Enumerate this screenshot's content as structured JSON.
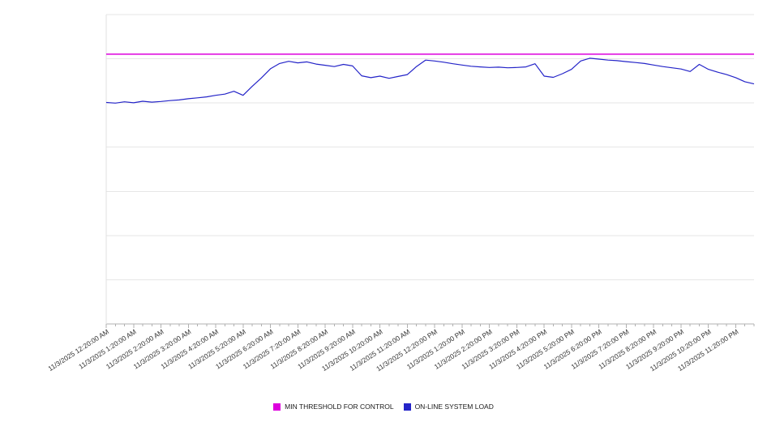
{
  "chart_data": {
    "type": "line",
    "points_per_hour": 3,
    "x_labels": [
      "11/3/2025 12:20:00 AM",
      "11/3/2025 1:20:00 AM",
      "11/3/2025 2:20:00 AM",
      "11/3/2025 3:20:00 AM",
      "11/3/2025 4:20:00 AM",
      "11/3/2025 5:20:00 AM",
      "11/3/2025 6:20:00 AM",
      "11/3/2025 7:20:00 AM",
      "11/3/2025 8:20:00 AM",
      "11/3/2025 9:20:00 AM",
      "11/3/2025 10:20:00 AM",
      "11/3/2025 11:20:00 AM",
      "11/3/2025 12:20:00 PM",
      "11/3/2025 1:20:00 PM",
      "11/3/2025 2:20:00 PM",
      "11/3/2025 3:20:00 PM",
      "11/3/2025 4:20:00 PM",
      "11/3/2025 5:20:00 PM",
      "11/3/2025 6:20:00 PM",
      "11/3/2025 7:20:00 PM",
      "11/3/2025 8:20:00 PM",
      "11/3/2025 9:20:00 PM",
      "11/3/2025 10:20:00 PM",
      "11/3/2025 11:20:00 PM"
    ],
    "ylim": [
      0,
      100
    ],
    "grid": "horizontal",
    "legend_position": "bottom",
    "series": [
      {
        "name": "MIN THRESHOLD FOR CONTROL",
        "color": "#dd00dd",
        "constant": 87.2
      },
      {
        "name": "ON-LINE SYSTEM LOAD",
        "color": "#2424c8",
        "values": [
          71.6,
          71.4,
          71.8,
          71.5,
          72.0,
          71.7,
          71.9,
          72.2,
          72.4,
          72.8,
          73.1,
          73.4,
          73.9,
          74.3,
          75.2,
          73.9,
          76.8,
          79.5,
          82.5,
          84.2,
          84.9,
          84.4,
          84.7,
          84.0,
          83.6,
          83.2,
          83.9,
          83.4,
          80.2,
          79.6,
          80.1,
          79.4,
          80.0,
          80.6,
          83.2,
          85.3,
          85.0,
          84.6,
          84.1,
          83.7,
          83.3,
          83.1,
          82.9,
          83.0,
          82.8,
          82.9,
          83.1,
          84.1,
          80.1,
          79.7,
          80.9,
          82.3,
          85.0,
          85.9,
          85.6,
          85.3,
          85.1,
          84.8,
          84.5,
          84.2,
          83.7,
          83.2,
          82.8,
          82.4,
          81.6,
          83.9,
          82.3,
          81.4,
          80.6,
          79.6,
          78.3,
          77.6
        ]
      }
    ]
  }
}
